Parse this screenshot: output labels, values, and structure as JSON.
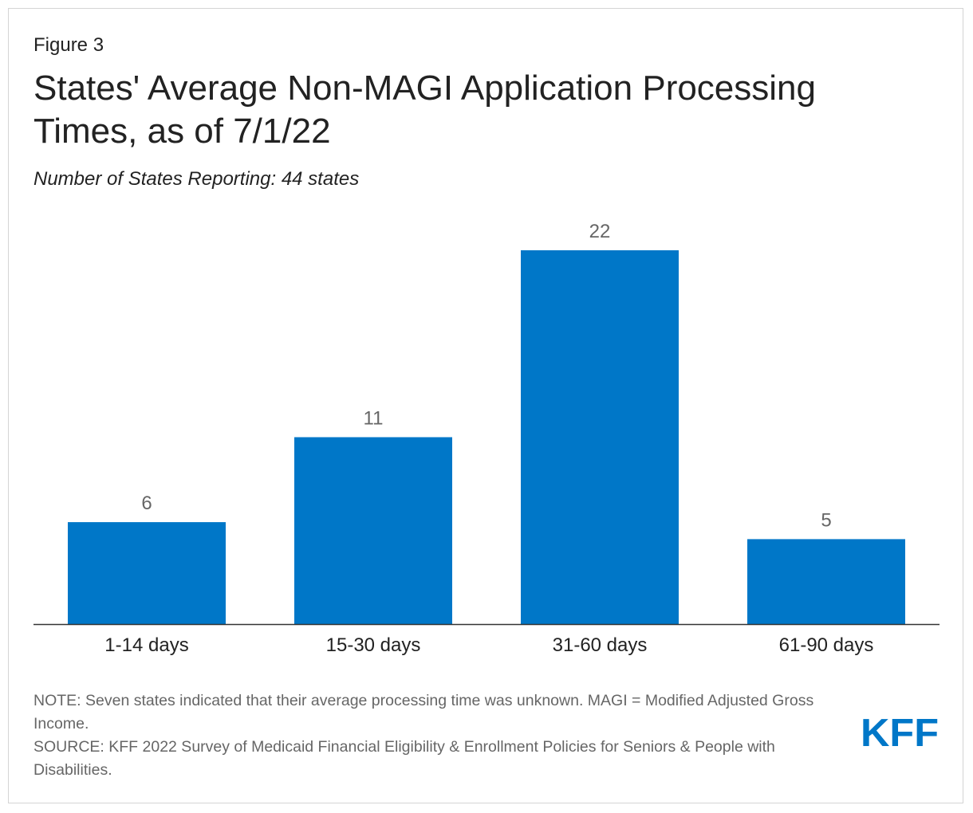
{
  "figure_label": "Figure 3",
  "title": "States' Average Non-MAGI Application Processing Times, as of 7/1/22",
  "subtitle": "Number of States Reporting: 44 states",
  "note": "NOTE: Seven states indicated that their average processing time was unknown. MAGI = Modified Adjusted Gross Income.",
  "source": "SOURCE: KFF 2022 Survey of Medicaid Financial Eligibility & Enrollment Policies for Seniors & People with Disabilities.",
  "logo_text": "KFF",
  "colors": {
    "bar": "#0077c8",
    "logo": "#0077c8",
    "axis": "#333333",
    "value_label": "#666666",
    "tick_label": "#222222"
  },
  "chart_data": {
    "type": "bar",
    "title": "States' Average Non-MAGI Application Processing Times, as of 7/1/22",
    "xlabel": "",
    "ylabel": "",
    "categories": [
      "1-14 days",
      "15-30 days",
      "31-60 days",
      "61-90 days"
    ],
    "values": [
      6,
      11,
      22,
      5
    ],
    "ylim": [
      0,
      22
    ],
    "grid": false,
    "data_labels": true
  }
}
